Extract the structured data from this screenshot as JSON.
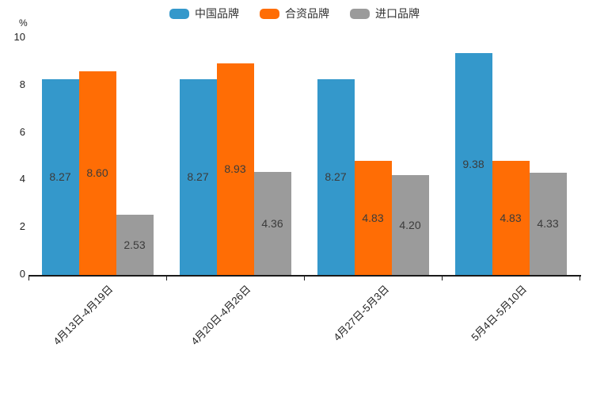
{
  "chart_data": {
    "type": "bar",
    "title": "",
    "categories": [
      "4月13日-4月19日",
      "4月20日-4月26日",
      "4月27日-5月3日",
      "5月4日-5月10日"
    ],
    "series": [
      {
        "name": "中国品牌",
        "color": "#3498cb",
        "values": [
          8.27,
          8.27,
          8.27,
          9.38
        ]
      },
      {
        "name": "合资品牌",
        "color": "#ff6d05",
        "values": [
          8.6,
          8.93,
          4.83,
          4.83
        ]
      },
      {
        "name": "进口品牌",
        "color": "#9b9b9b",
        "values": [
          2.53,
          4.36,
          4.2,
          4.33
        ]
      }
    ],
    "xlabel": "",
    "ylabel": "%",
    "ylim": [
      0,
      10
    ],
    "yticks": [
      0,
      2,
      4,
      6,
      8,
      10
    ],
    "legend_position": "top",
    "grid": false,
    "value_labels": "inside-center",
    "axis_color": "#1a1a1a"
  }
}
